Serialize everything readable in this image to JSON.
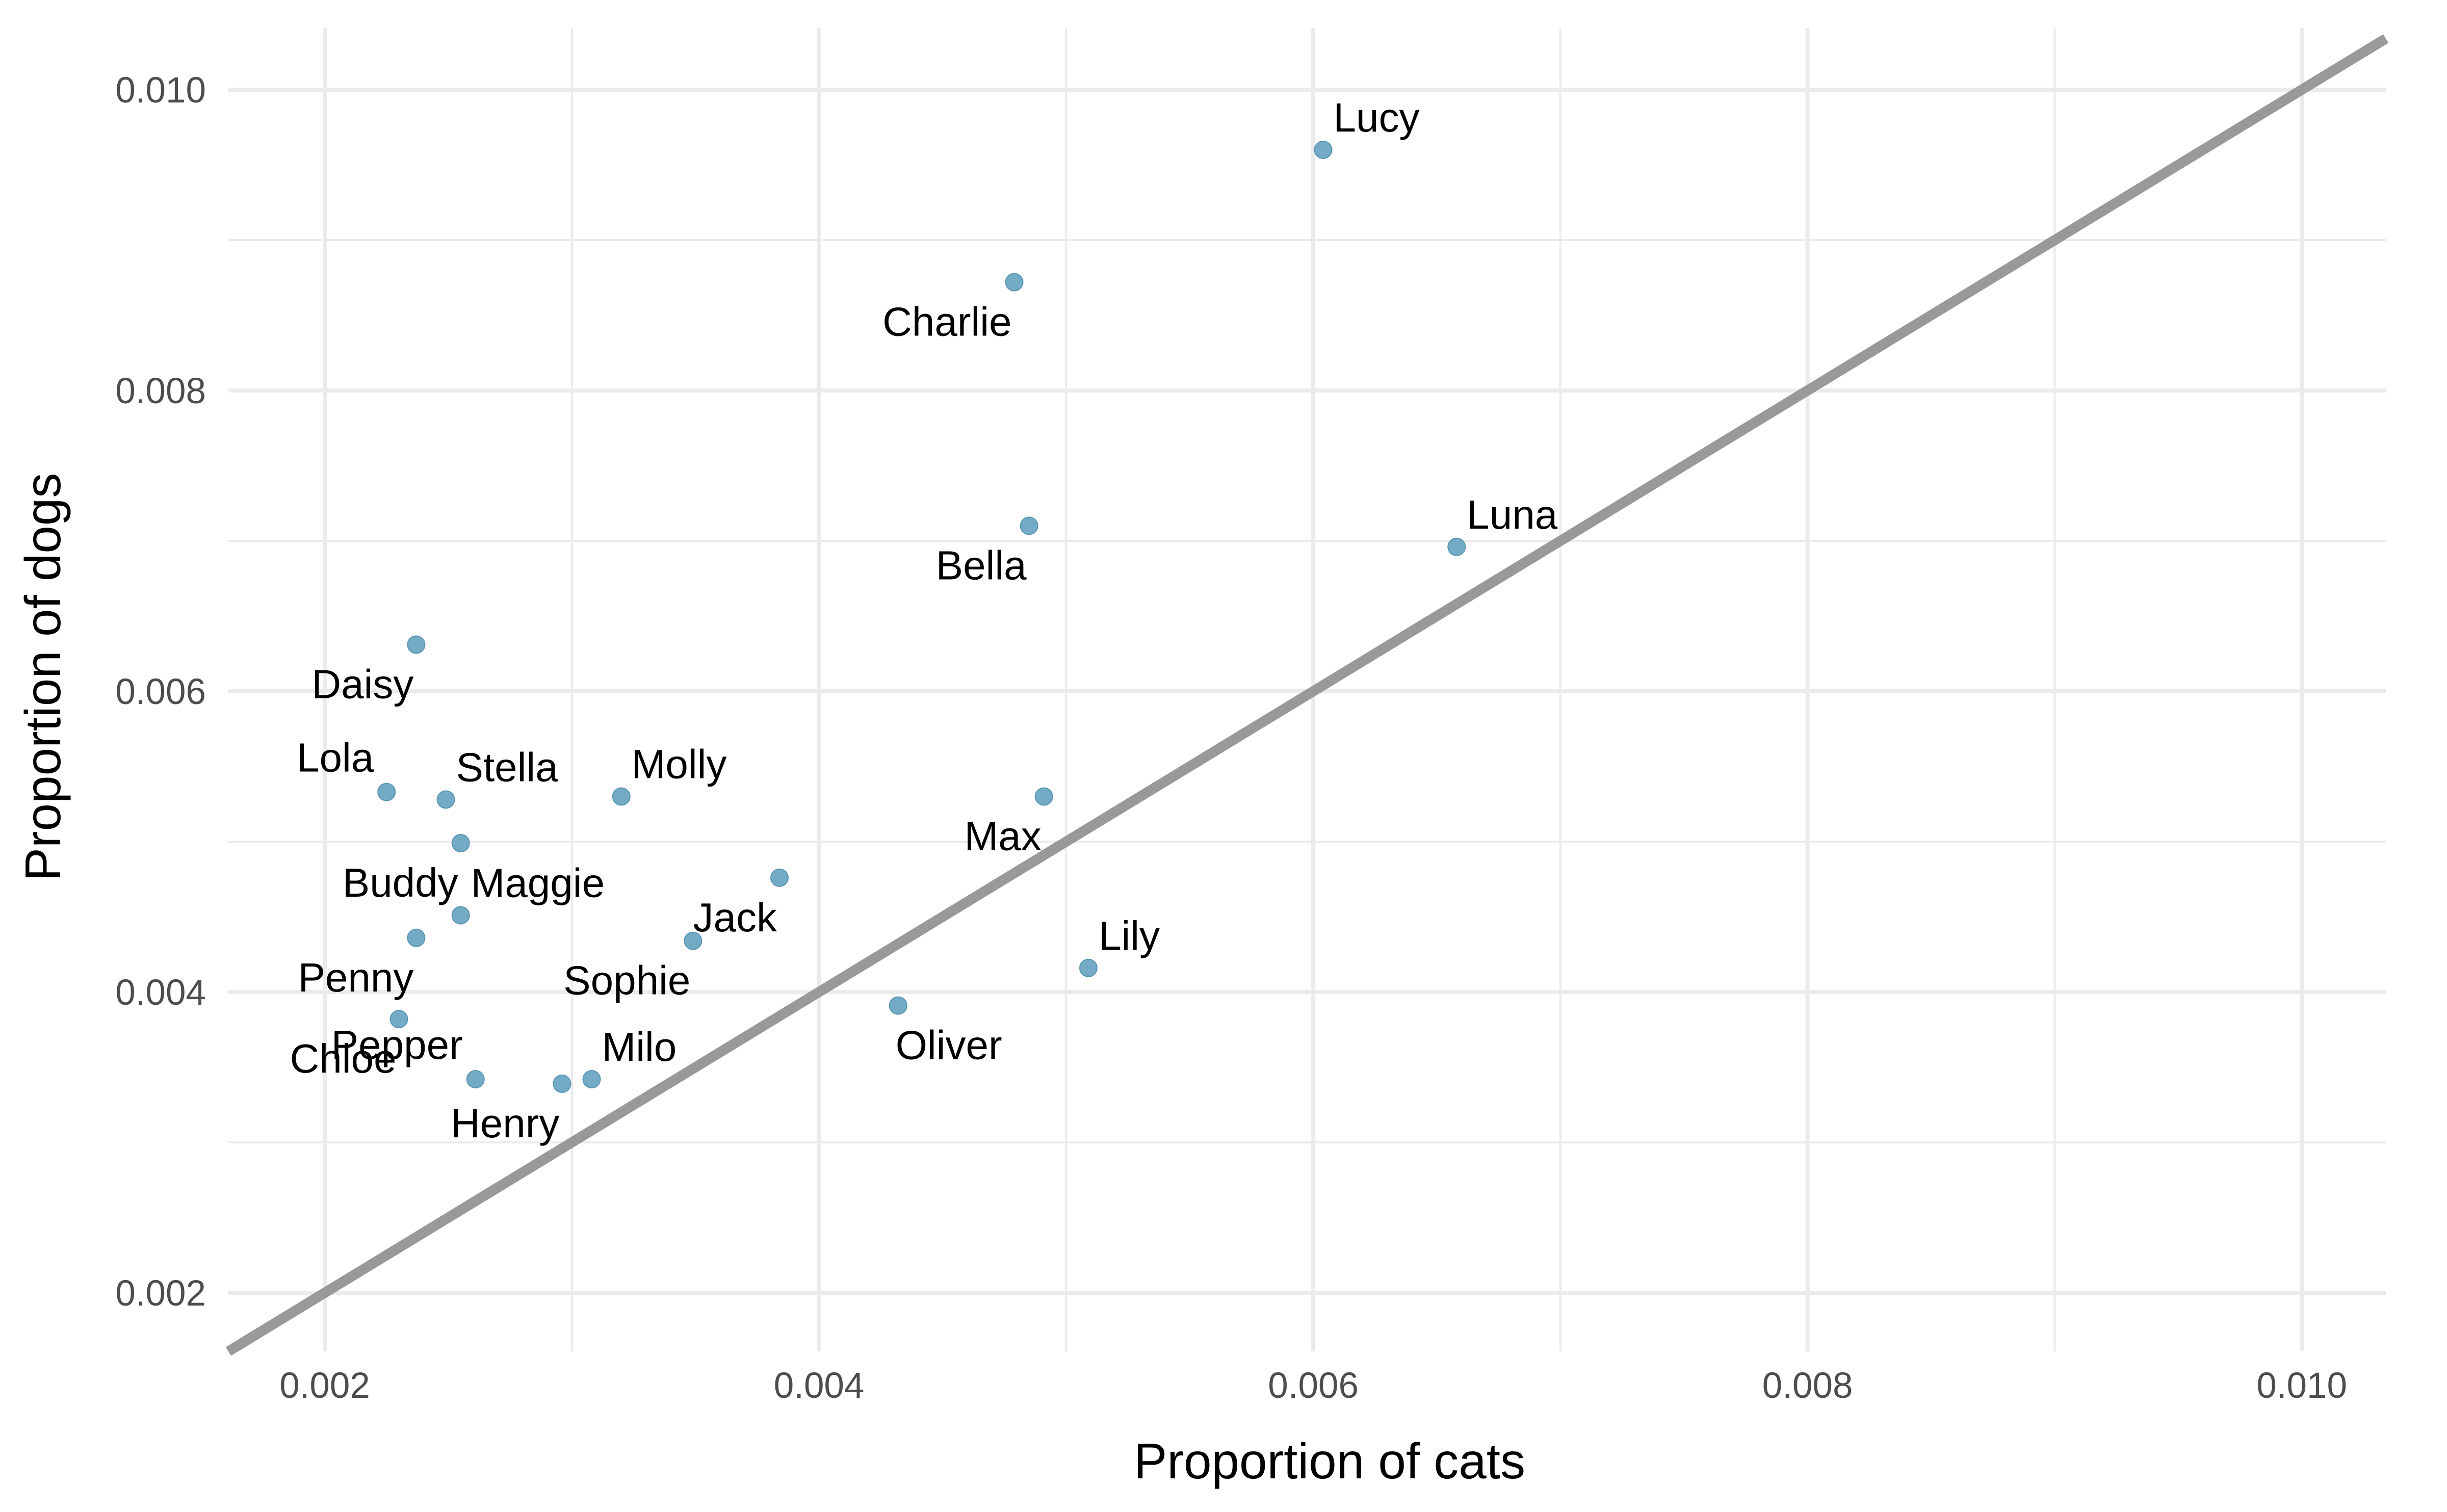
{
  "chart_data": {
    "type": "scatter",
    "xlabel": "Proportion of cats",
    "ylabel": "Proportion of dogs",
    "xlim": [
      0.00161,
      0.01034
    ],
    "ylim": [
      0.00161,
      0.01041
    ],
    "x_ticks": [
      {
        "value": 0.002,
        "label": "0.002"
      },
      {
        "value": 0.004,
        "label": "0.004"
      },
      {
        "value": 0.006,
        "label": "0.006"
      },
      {
        "value": 0.008,
        "label": "0.008"
      },
      {
        "value": 0.01,
        "label": "0.010"
      }
    ],
    "y_ticks": [
      {
        "value": 0.002,
        "label": "0.002"
      },
      {
        "value": 0.004,
        "label": "0.004"
      },
      {
        "value": 0.006,
        "label": "0.006"
      },
      {
        "value": 0.008,
        "label": "0.008"
      },
      {
        "value": 0.01,
        "label": "0.010"
      }
    ],
    "x_minor": [
      0.003,
      0.005,
      0.007,
      0.009
    ],
    "y_minor": [
      0.003,
      0.005,
      0.007,
      0.009
    ],
    "grid": true,
    "reference_line": {
      "type": "identity",
      "slope": 1,
      "intercept": 0,
      "color": "#999999"
    },
    "point_color": "#6BA6C4",
    "points": [
      {
        "name": "Lucy",
        "x": 0.00604,
        "y": 0.0096,
        "label_pos": "above-right"
      },
      {
        "name": "Charlie",
        "x": 0.00479,
        "y": 0.00872,
        "label_pos": "below-left"
      },
      {
        "name": "Bella",
        "x": 0.00485,
        "y": 0.0071,
        "label_pos": "below-left"
      },
      {
        "name": "Luna",
        "x": 0.00658,
        "y": 0.00696,
        "label_pos": "above-right"
      },
      {
        "name": "Daisy",
        "x": 0.00237,
        "y": 0.00631,
        "label_pos": "below-left"
      },
      {
        "name": "Lola",
        "x": 0.00225,
        "y": 0.00533,
        "label_pos": "above-left"
      },
      {
        "name": "Stella",
        "x": 0.00249,
        "y": 0.00528,
        "label_pos": "above-right"
      },
      {
        "name": "Molly",
        "x": 0.0032,
        "y": 0.0053,
        "label_pos": "above-right"
      },
      {
        "name": "Max",
        "x": 0.00491,
        "y": 0.0053,
        "label_pos": "below-left"
      },
      {
        "name": "Buddy",
        "x": 0.00255,
        "y": 0.00499,
        "label_pos": "below-left"
      },
      {
        "name": "Jack",
        "x": 0.00384,
        "y": 0.00476,
        "label_pos": "below-left"
      },
      {
        "name": "Maggie",
        "x": 0.00255,
        "y": 0.00451,
        "label_pos": "above-right"
      },
      {
        "name": "Penny",
        "x": 0.00237,
        "y": 0.00436,
        "label_pos": "below-left"
      },
      {
        "name": "Sophie",
        "x": 0.00349,
        "y": 0.00434,
        "label_pos": "below-left"
      },
      {
        "name": "Lily",
        "x": 0.00509,
        "y": 0.00416,
        "label_pos": "above-right"
      },
      {
        "name": "Oliver",
        "x": 0.00432,
        "y": 0.00391,
        "label_pos": "below-right"
      },
      {
        "name": "Chloe",
        "x": 0.0023,
        "y": 0.00382,
        "label_pos": "below-left"
      },
      {
        "name": "Pepper",
        "x": 0.00261,
        "y": 0.00342,
        "label_pos": "above-left"
      },
      {
        "name": "Milo",
        "x": 0.00308,
        "y": 0.00342,
        "label_pos": "above-right"
      },
      {
        "name": "Henry",
        "x": 0.00296,
        "y": 0.00339,
        "label_pos": "below-left"
      }
    ]
  }
}
